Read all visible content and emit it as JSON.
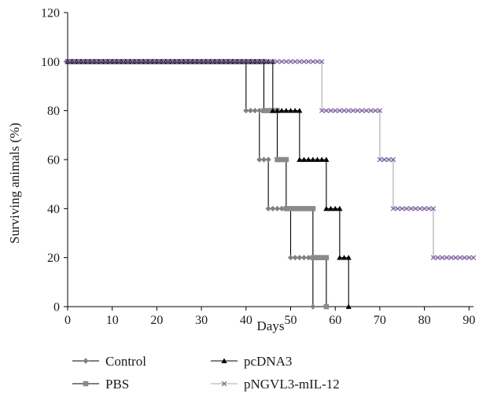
{
  "chart_data": {
    "type": "line",
    "xlabel": "Days",
    "ylabel": "Surviving animals (%)",
    "xlim": [
      0,
      91
    ],
    "ylim": [
      0,
      120
    ],
    "xticks": [
      "0",
      "10",
      "20",
      "30",
      "40",
      "50",
      "60",
      "70",
      "80",
      "90"
    ],
    "yticks": [
      "0",
      "20",
      "40",
      "60",
      "80",
      "100",
      "120"
    ],
    "legend_position": "bottom",
    "series": [
      {
        "name": "Control",
        "color": "#808080",
        "line_color": "#000000",
        "marker": "diamond",
        "steps": [
          [
            0,
            100
          ],
          [
            40,
            80
          ],
          [
            43,
            60
          ],
          [
            45,
            40
          ],
          [
            50,
            20
          ],
          [
            55,
            0
          ]
        ],
        "end": 55
      },
      {
        "name": "PBS",
        "color": "#8a8a8a",
        "line_color": "#000000",
        "marker": "square",
        "steps": [
          [
            0,
            100
          ],
          [
            44,
            80
          ],
          [
            47,
            60
          ],
          [
            49,
            40
          ],
          [
            55,
            20
          ],
          [
            58,
            0
          ]
        ],
        "end": 58
      },
      {
        "name": "pcDNA3",
        "color": "#000000",
        "line_color": "#000000",
        "marker": "triangle",
        "steps": [
          [
            0,
            100
          ],
          [
            46,
            80
          ],
          [
            52,
            60
          ],
          [
            58,
            40
          ],
          [
            61,
            20
          ],
          [
            63,
            0
          ]
        ],
        "end": 63
      },
      {
        "name": "pNGVL3-mIL-12",
        "color": "#7b5aa6",
        "line_color": "#a8a8a8",
        "marker": "x",
        "steps": [
          [
            0,
            100
          ],
          [
            57,
            80
          ],
          [
            70,
            60
          ],
          [
            73,
            40
          ],
          [
            82,
            20
          ]
        ],
        "end": 91
      }
    ]
  }
}
